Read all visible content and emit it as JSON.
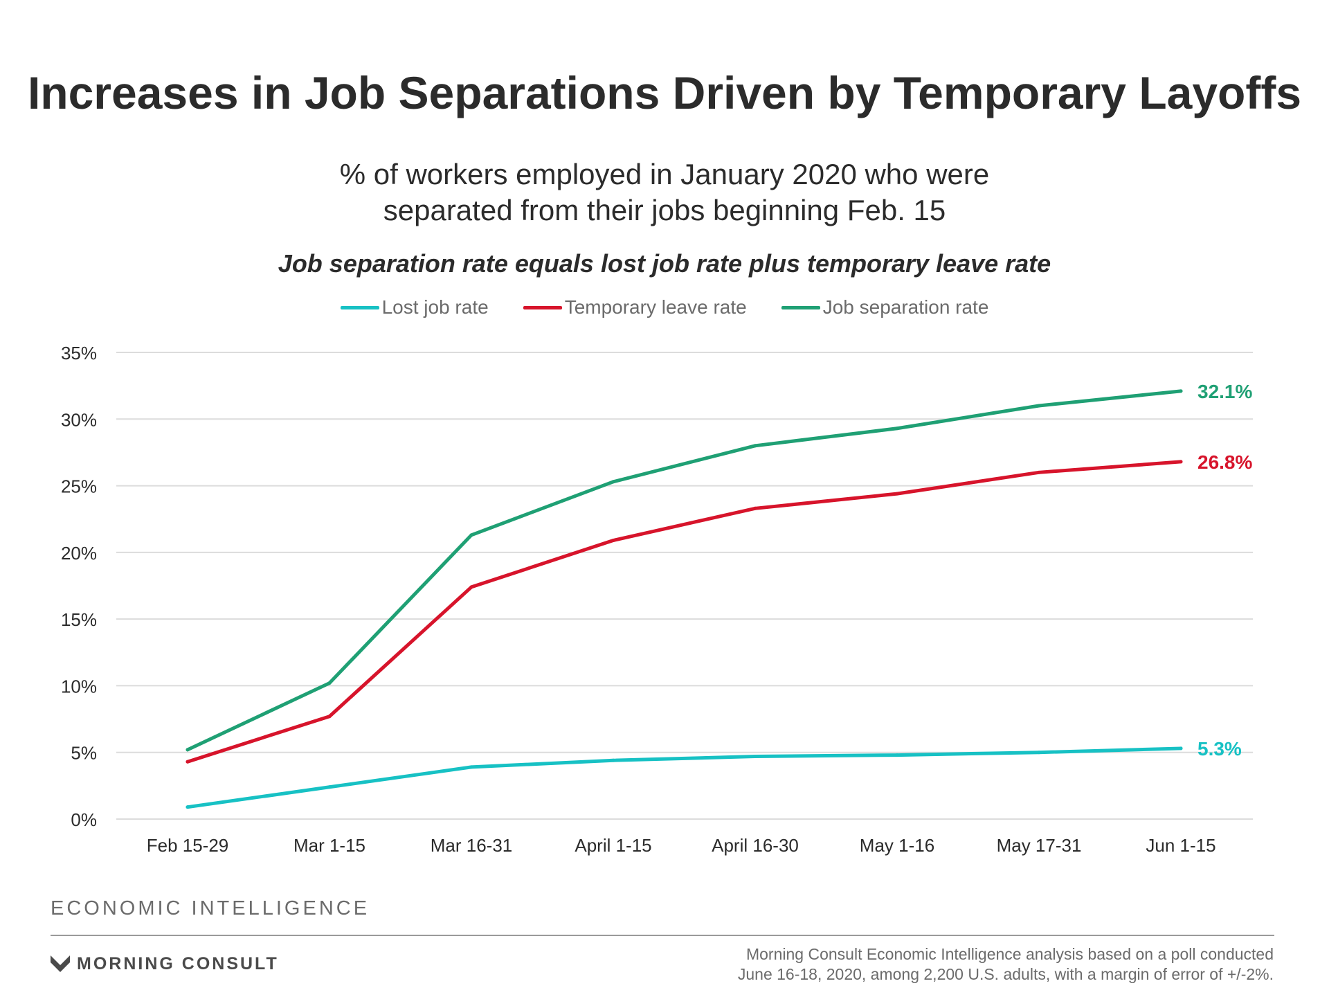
{
  "title": "Increases in Job Separations Driven by Temporary Layoffs",
  "subtitle_lines": [
    "% of workers employed in January 2020 who were",
    "separated from their jobs beginning Feb. 15"
  ],
  "chart_note": "Job separation rate equals lost job rate plus temporary leave rate",
  "footer": {
    "section": "ECONOMIC INTELLIGENCE",
    "logo_text": "MORNING CONSULT",
    "source_lines": [
      "Morning Consult Economic Intelligence analysis based on a poll conducted",
      "June 16-18, 2020, among 2,200 U.S. adults, with a margin of error of +/-2%."
    ]
  },
  "chart_data": {
    "type": "line",
    "title": "Increases in Job Separations Driven by Temporary Layoffs",
    "x": [
      "Feb 15-29",
      "Mar 1-15",
      "Mar 16-31",
      "April 1-15",
      "April 16-30",
      "May 1-16",
      "May 17-31",
      "Jun 1-15"
    ],
    "ylim": [
      0,
      35
    ],
    "y_ticks": [
      0,
      5,
      10,
      15,
      20,
      25,
      30,
      35
    ],
    "y_tick_labels": [
      "0%",
      "5%",
      "10%",
      "15%",
      "20%",
      "25%",
      "30%",
      "35%"
    ],
    "grid": true,
    "legend_position": "top-center",
    "series": [
      {
        "name": "Lost job rate",
        "color": "#17c1c4",
        "values": [
          0.9,
          2.4,
          3.9,
          4.4,
          4.7,
          4.8,
          5.0,
          5.3
        ],
        "end_label": "5.3%"
      },
      {
        "name": "Temporary leave rate",
        "color": "#d7142b",
        "values": [
          4.3,
          7.7,
          17.4,
          20.9,
          23.3,
          24.4,
          26.0,
          26.8
        ],
        "end_label": "26.8%"
      },
      {
        "name": "Job separation rate",
        "color": "#1fa074",
        "values": [
          5.2,
          10.2,
          21.3,
          25.3,
          28.0,
          29.3,
          31.0,
          32.1
        ],
        "end_label": "32.1%"
      }
    ]
  }
}
